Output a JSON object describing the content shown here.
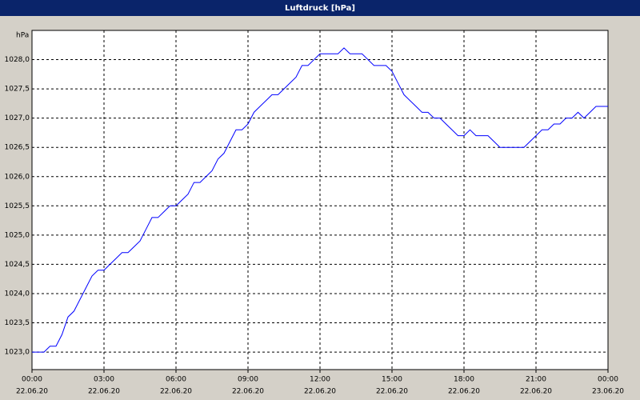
{
  "chart_data": {
    "type": "line",
    "title": "Luftdruck [hPa]",
    "y_unit": "hPa",
    "x": [
      0,
      0.25,
      0.5,
      0.75,
      1,
      1.25,
      1.5,
      1.75,
      2,
      2.25,
      2.5,
      2.75,
      3,
      3.25,
      3.5,
      3.75,
      4,
      4.25,
      4.5,
      4.75,
      5,
      5.25,
      5.5,
      5.75,
      6,
      6.25,
      6.5,
      6.75,
      7,
      7.25,
      7.5,
      7.75,
      8,
      8.25,
      8.5,
      8.75,
      9,
      9.25,
      9.5,
      9.75,
      10,
      10.25,
      10.5,
      10.75,
      11,
      11.25,
      11.5,
      11.75,
      12,
      12.25,
      12.5,
      12.75,
      13,
      13.25,
      13.5,
      13.75,
      14,
      14.25,
      14.5,
      14.75,
      15,
      15.25,
      15.5,
      15.75,
      16,
      16.25,
      16.5,
      16.75,
      17,
      17.25,
      17.5,
      17.75,
      18,
      18.25,
      18.5,
      18.75,
      19,
      19.25,
      19.5,
      19.75,
      20,
      20.25,
      20.5,
      20.75,
      21,
      21.25,
      21.5,
      21.75,
      22,
      22.25,
      22.5,
      22.75,
      23,
      23.25,
      23.5,
      23.75,
      24
    ],
    "series": [
      {
        "color": "#0000ff",
        "values": [
          1023.0,
          1023.0,
          1023.0,
          1023.1,
          1023.1,
          1023.3,
          1023.6,
          1023.7,
          1023.9,
          1024.1,
          1024.3,
          1024.4,
          1024.4,
          1024.5,
          1024.6,
          1024.7,
          1024.7,
          1024.8,
          1024.9,
          1025.1,
          1025.3,
          1025.3,
          1025.4,
          1025.5,
          1025.5,
          1025.6,
          1025.7,
          1025.9,
          1025.9,
          1026.0,
          1026.1,
          1026.3,
          1026.4,
          1026.6,
          1026.8,
          1026.8,
          1026.9,
          1027.1,
          1027.2,
          1027.3,
          1027.4,
          1027.4,
          1027.5,
          1027.6,
          1027.7,
          1027.9,
          1027.9,
          1028.0,
          1028.1,
          1028.1,
          1028.1,
          1028.1,
          1028.2,
          1028.1,
          1028.1,
          1028.1,
          1028.0,
          1027.9,
          1027.9,
          1027.9,
          1027.8,
          1027.6,
          1027.4,
          1027.3,
          1027.2,
          1027.1,
          1027.1,
          1027.0,
          1027.0,
          1026.9,
          1026.8,
          1026.7,
          1026.7,
          1026.8,
          1026.7,
          1026.7,
          1026.7,
          1026.6,
          1026.5,
          1026.5,
          1026.5,
          1026.5,
          1026.5,
          1026.6,
          1026.7,
          1026.8,
          1026.8,
          1026.9,
          1026.9,
          1027.0,
          1027.0,
          1027.1,
          1027.0,
          1027.1,
          1027.2,
          1027.2,
          1027.2
        ]
      }
    ],
    "xlim": [
      0,
      24
    ],
    "xticks": [
      {
        "value": 0,
        "label": "00:00"
      },
      {
        "value": 3,
        "label": "03:00"
      },
      {
        "value": 6,
        "label": "06:00"
      },
      {
        "value": 9,
        "label": "09:00"
      },
      {
        "value": 12,
        "label": "12:00"
      },
      {
        "value": 15,
        "label": "15:00"
      },
      {
        "value": 18,
        "label": "18:00"
      },
      {
        "value": 21,
        "label": "21:00"
      },
      {
        "value": 24,
        "label": "00:00"
      }
    ],
    "xtick_dates": [
      "22.06.20",
      "22.06.20",
      "22.06.20",
      "22.06.20",
      "22.06.20",
      "22.06.20",
      "22.06.20",
      "22.06.20",
      "23.06.20"
    ],
    "ylim": [
      1022.7,
      1028.5
    ],
    "yticks": [
      {
        "value": 1023,
        "label": "1023,0"
      },
      {
        "value": 1023.5,
        "label": "1023,5"
      },
      {
        "value": 1024,
        "label": "1024,0"
      },
      {
        "value": 1024.5,
        "label": "1024,5"
      },
      {
        "value": 1025,
        "label": "1025,0"
      },
      {
        "value": 1025.5,
        "label": "1025,5"
      },
      {
        "value": 1026,
        "label": "1026,0"
      },
      {
        "value": 1026.5,
        "label": "1026,5"
      },
      {
        "value": 1027,
        "label": "1027,0"
      },
      {
        "value": 1027.5,
        "label": "1027,5"
      },
      {
        "value": 1028,
        "label": "1028,0"
      }
    ],
    "grid": true
  }
}
